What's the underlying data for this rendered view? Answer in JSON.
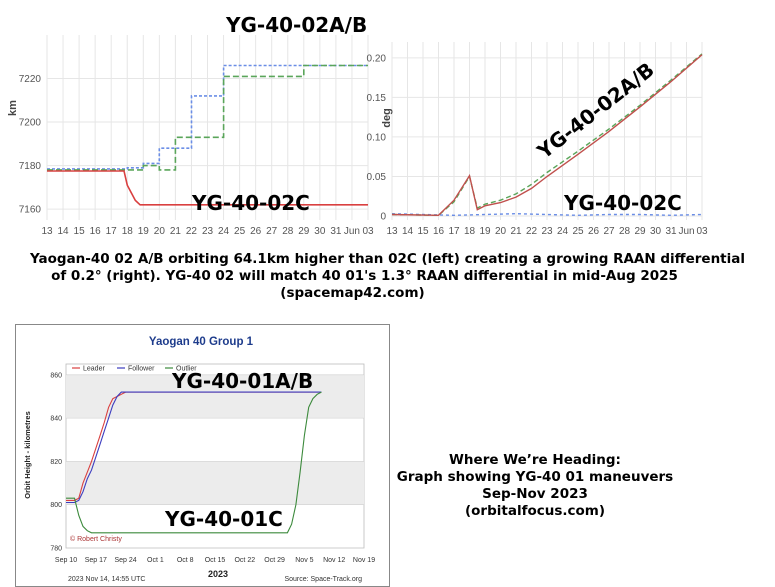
{
  "chart_data": [
    {
      "type": "line",
      "ylabel": "km",
      "ylim": [
        7155,
        7240
      ],
      "yticks": [
        "7160",
        "7180",
        "7200",
        "7220"
      ],
      "xticks": [
        "13",
        "14",
        "15",
        "16",
        "17",
        "18",
        "19",
        "20",
        "21",
        "22",
        "23",
        "24",
        "25",
        "26",
        "27",
        "28",
        "29",
        "30",
        "31",
        "Jun",
        "03"
      ],
      "annotations": [
        "YG-40-02A/B",
        "YG-40-02C"
      ],
      "colors": {
        "blue": "#6b8ee6",
        "green": "#5aa55a",
        "red": "#d94040",
        "grid": "#e6e6e6"
      },
      "series": [
        {
          "x": [
            13,
            18,
            18,
            19,
            19,
            20,
            20,
            21,
            21,
            22,
            22,
            24,
            24,
            29,
            29,
            33
          ],
          "y": [
            7178.5,
            7178.5,
            7179,
            7179,
            7181,
            7181,
            7188,
            7188,
            7188,
            7188,
            7212,
            7212,
            7226,
            7226,
            7226,
            7226
          ]
        },
        {
          "x": [
            13,
            19,
            19,
            20,
            20,
            21,
            21,
            22,
            22,
            24,
            24,
            27,
            27,
            29,
            29,
            33
          ],
          "y": [
            7178,
            7178,
            7180,
            7180,
            7178,
            7178,
            7193,
            7193,
            7193,
            7193,
            7221,
            7221,
            7221,
            7221,
            7226,
            7226
          ]
        },
        {
          "x": [
            13,
            17.8,
            18,
            18.5,
            18.8,
            33
          ],
          "y": [
            7177.5,
            7177.5,
            7171,
            7164,
            7162,
            7162
          ]
        }
      ]
    },
    {
      "type": "line",
      "ylabel": "deg",
      "ylim": [
        -0.005,
        0.22
      ],
      "yticks": [
        "0",
        "0.05",
        "0.10",
        "0.15",
        "0.20"
      ],
      "xticks": [
        "13",
        "14",
        "15",
        "16",
        "17",
        "18",
        "19",
        "20",
        "21",
        "22",
        "23",
        "24",
        "25",
        "26",
        "27",
        "28",
        "29",
        "30",
        "31",
        "Jun",
        "03"
      ],
      "annotations": [
        "YG-40-02A/B",
        "YG-40-02C"
      ],
      "colors": {
        "blue": "#6b8ee6",
        "green": "#5aa55a",
        "red": "#c0504d",
        "grid": "#e6e6e6"
      },
      "series": [
        {
          "x": [
            13,
            15,
            17,
            19,
            21,
            23,
            25,
            27,
            29,
            31,
            33
          ],
          "y": [
            0.003,
            0.002,
            0.001,
            0.002,
            0.003,
            0.002,
            0.001,
            0.002,
            0.002,
            0.001,
            0.002
          ]
        },
        {
          "x": [
            13,
            16,
            17,
            18,
            18.5,
            19,
            20,
            21,
            22,
            23,
            25,
            27,
            29,
            31,
            33
          ],
          "y": [
            0.002,
            0.001,
            0.018,
            0.05,
            0.01,
            0.015,
            0.02,
            0.028,
            0.04,
            0.055,
            0.082,
            0.11,
            0.14,
            0.172,
            0.205
          ]
        },
        {
          "x": [
            13,
            16,
            17,
            18,
            18.5,
            19,
            20,
            21,
            22,
            23,
            25,
            27,
            29,
            31,
            33
          ],
          "y": [
            0.002,
            0.001,
            0.02,
            0.051,
            0.008,
            0.013,
            0.017,
            0.024,
            0.035,
            0.05,
            0.078,
            0.107,
            0.138,
            0.17,
            0.204
          ]
        }
      ]
    },
    {
      "type": "line",
      "title": "Yaogan 40 Group 1",
      "ylabel": "Orbit Height - kilometres",
      "xlabel": "2023",
      "ylim": [
        780,
        865
      ],
      "yticks": [
        "780",
        "800",
        "820",
        "840",
        "860"
      ],
      "xticks": [
        "Sep 10",
        "Sep 17",
        "Sep 24",
        "Oct 1",
        "Oct 8",
        "Oct 15",
        "Oct 22",
        "Oct 29",
        "Nov 5",
        "Nov 12",
        "Nov 19"
      ],
      "legend": [
        "Leader",
        "Follower",
        "Outlier"
      ],
      "legend_position": "top-left",
      "annotations": [
        "YG-40-01A/B",
        "YG-40-01C"
      ],
      "footer_left": "2023 Nov 14, 14:55 UTC",
      "footer_right": "Source: Space-Track.org",
      "credit": "© Robert Christy",
      "colors": {
        "leader": "#d94040",
        "follower": "#3d3dbf",
        "outlier": "#3c8a3c",
        "band": "#ececec",
        "title": "#1e3c8c"
      },
      "series": [
        {
          "name": "Leader",
          "x": [
            0,
            2,
            3,
            4,
            5,
            6,
            7,
            8,
            9,
            10,
            11,
            12,
            13,
            14,
            16,
            20,
            30,
            40,
            50,
            57,
            60
          ],
          "y": [
            802,
            802,
            803,
            810,
            815,
            820,
            826,
            832,
            838,
            845,
            849,
            850,
            851,
            852,
            852,
            852,
            852,
            852,
            852,
            852,
            852
          ]
        },
        {
          "name": "Follower",
          "x": [
            0,
            2,
            3,
            4,
            5,
            6,
            7,
            8,
            9,
            10,
            11,
            12,
            13,
            14,
            16,
            20,
            30,
            40,
            50,
            57,
            60
          ],
          "y": [
            801,
            801,
            802,
            806,
            812,
            816,
            822,
            828,
            834,
            840,
            846,
            850,
            852,
            852,
            852,
            852,
            852,
            852,
            852,
            852,
            852
          ]
        },
        {
          "name": "Outlier",
          "x": [
            0,
            2,
            3,
            4,
            5,
            6,
            8,
            10,
            20,
            30,
            40,
            50,
            52,
            53,
            54,
            55,
            56,
            57,
            58,
            59,
            60
          ],
          "y": [
            803,
            803,
            795,
            790,
            788,
            787,
            787,
            787,
            787,
            787,
            787,
            787,
            787,
            791,
            800,
            815,
            832,
            845,
            849,
            851,
            852
          ]
        }
      ]
    }
  ],
  "captions": {
    "top": [
      "Yaogan-40 02 A/B orbiting 64.1km higher than 02C (left) creating a growing RAAN differential",
      "of 0.2° (right).  YG-40 02 will match 40 01's 1.3° RAAN differential in mid-Aug 2025",
      "(spacemap42.com)"
    ],
    "right": [
      "Where We’re Heading:",
      "Graph showing YG-40 01 maneuvers",
      "Sep-Nov 2023",
      "(orbitalfocus.com)"
    ]
  }
}
